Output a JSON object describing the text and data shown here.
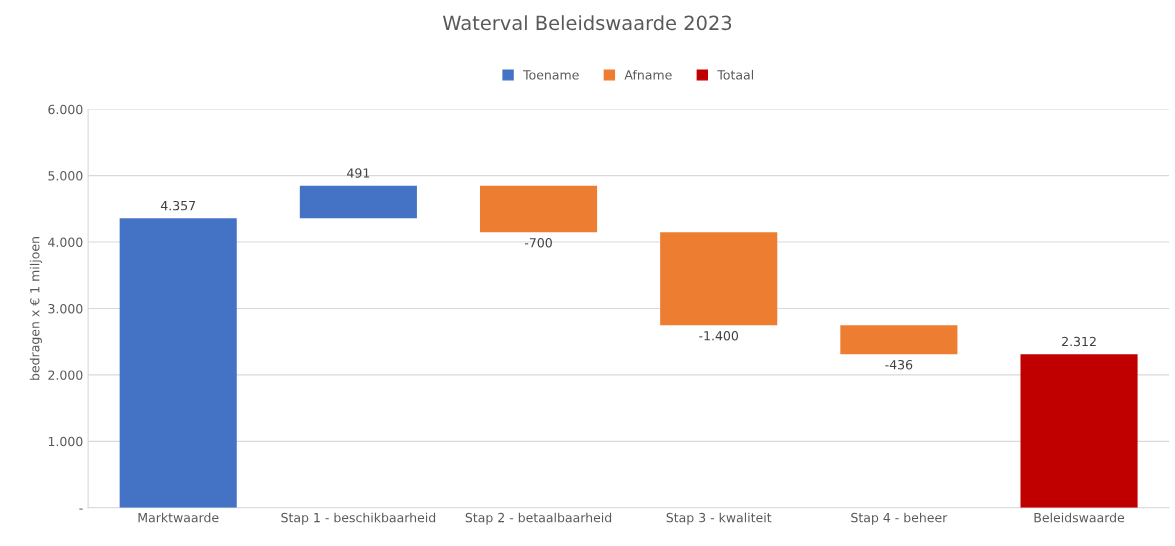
{
  "chart_data": {
    "type": "bar",
    "title": "Waterval Beleidswaarde 2023",
    "ylabel": "bedragen x € 1 miljoen",
    "categories": [
      "Marktwaarde",
      "Stap 1 - beschikbaarheid",
      "Stap 2 - betaalbaarheid",
      "Stap 3 - kwaliteit",
      "Stap 4 - beheer",
      "Beleidswaarde"
    ],
    "series": [
      {
        "name": "Toename",
        "color": "#4472c4",
        "values": [
          4357,
          491,
          null,
          null,
          null,
          null
        ],
        "base": [
          0,
          4357,
          null,
          null,
          null,
          null
        ],
        "value_labels": [
          "4.357",
          "491",
          null,
          null,
          null,
          null
        ]
      },
      {
        "name": "Afname",
        "color": "#ed7d31",
        "values": [
          null,
          null,
          -700,
          -1400,
          -436,
          null
        ],
        "base": [
          null,
          null,
          4848,
          4148,
          2748,
          null
        ],
        "value_labels": [
          null,
          null,
          "-700",
          "-1.400",
          "-436",
          null
        ]
      },
      {
        "name": "Totaal",
        "color": "#c00000",
        "values": [
          null,
          null,
          null,
          null,
          null,
          2312
        ],
        "base": [
          null,
          null,
          null,
          null,
          null,
          0
        ],
        "value_labels": [
          null,
          null,
          null,
          null,
          null,
          "2.312"
        ]
      }
    ],
    "ylim": [
      0,
      6000
    ],
    "yticks": [
      {
        "value": 0,
        "label": "-"
      },
      {
        "value": 1000,
        "label": "1.000"
      },
      {
        "value": 2000,
        "label": "2.000"
      },
      {
        "value": 3000,
        "label": "3.000"
      },
      {
        "value": 4000,
        "label": "4.000"
      },
      {
        "value": 5000,
        "label": "5.000"
      },
      {
        "value": 6000,
        "label": "6.000"
      }
    ],
    "grid": "y",
    "legend": "top"
  }
}
